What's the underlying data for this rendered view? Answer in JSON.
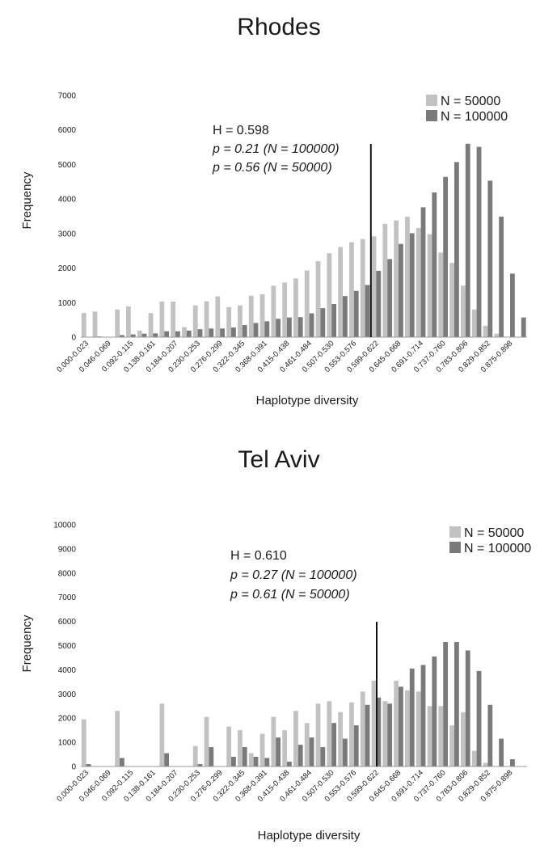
{
  "chart_data": [
    {
      "type": "bar",
      "title": "Rhodes",
      "xlabel": "Haplotype diversity",
      "ylabel": "Frequency",
      "ylim": [
        0,
        7000
      ],
      "yticks": [
        0,
        1000,
        2000,
        3000,
        4000,
        5000,
        6000,
        7000
      ],
      "legend": "top-right",
      "grid": false,
      "colors": {
        "N = 50000": "#c2c2c2",
        "N = 100000": "#7a7a7a"
      },
      "categories": [
        "0.000-0.023",
        "0.023-0.046",
        "0.046-0.069",
        "0.069-0.092",
        "0.092-0.115",
        "0.115-0.138",
        "0.138-0.161",
        "0.161-0.184",
        "0.184-0.207",
        "0.207-0.230",
        "0.230-0.253",
        "0.253-0.276",
        "0.276-0.299",
        "0.299-0.322",
        "0.322-0.345",
        "0.345-0.368",
        "0.368-0.391",
        "0.391-0.415",
        "0.415-0.438",
        "0.438-0.461",
        "0.461-0.484",
        "0.484-0.507",
        "0.507-0.530",
        "0.530-0.553",
        "0.553-0.576",
        "0.576-0.599",
        "0.599-0.622",
        "0.622-0.645",
        "0.645-0.668",
        "0.668-0.691",
        "0.691-0.714",
        "0.714-0.737",
        "0.737-0.760",
        "0.760-0.783",
        "0.783-0.806",
        "0.806-0.829",
        "0.829-0.852",
        "0.852-0.875",
        "0.875-0.898",
        "0.898-0.921"
      ],
      "tick_labels": [
        "0.000-0.023",
        "0.046-0.069",
        "0.092-0.115",
        "0.138-0.161",
        "0.184-0.207",
        "0.230-0.253",
        "0.276-0.299",
        "0.322-0.345",
        "0.368-0.391",
        "0.415-0.438",
        "0.461-0.484",
        "0.507-0.530",
        "0.553-0.576",
        "0.599-0.622",
        "0.645-0.668",
        "0.691-0.714",
        "0.737-0.760",
        "0.783-0.806",
        "0.829-0.852",
        "0.875-0.898"
      ],
      "series": [
        {
          "name": "N = 50000",
          "values": [
            700,
            740,
            0,
            800,
            890,
            190,
            700,
            1030,
            1030,
            290,
            920,
            1040,
            1180,
            870,
            920,
            1200,
            1240,
            1490,
            1580,
            1700,
            1930,
            2200,
            2430,
            2610,
            2750,
            2840,
            2920,
            3280,
            3380,
            3490,
            3160,
            2980,
            2450,
            2150,
            1490,
            800,
            330,
            100,
            0,
            0
          ]
        },
        {
          "name": "N = 100000",
          "values": [
            0,
            20,
            0,
            60,
            80,
            100,
            110,
            170,
            170,
            190,
            230,
            250,
            250,
            280,
            350,
            410,
            460,
            530,
            570,
            580,
            690,
            840,
            960,
            1190,
            1340,
            1510,
            1920,
            2260,
            2700,
            3010,
            3760,
            4190,
            4640,
            5070,
            5600,
            5510,
            4530,
            3490,
            1840,
            570
          ]
        }
      ],
      "annotations": [
        {
          "x": 0.598,
          "text_lines": [
            "H = 0.598",
            "p = 0.21 (N = 100000)",
            "p = 0.56 (N = 50000)"
          ]
        }
      ]
    },
    {
      "type": "bar",
      "title": "Tel Aviv",
      "xlabel": "Haplotype diversity",
      "ylabel": "Frequency",
      "ylim": [
        0,
        10000
      ],
      "yticks": [
        0,
        1000,
        2000,
        3000,
        4000,
        5000,
        6000,
        7000,
        8000,
        9000,
        10000
      ],
      "legend": "top-right",
      "grid": false,
      "colors": {
        "N = 50000": "#c2c2c2",
        "N = 100000": "#7a7a7a"
      },
      "categories": [
        "0.000-0.023",
        "0.023-0.046",
        "0.046-0.069",
        "0.069-0.092",
        "0.092-0.115",
        "0.115-0.138",
        "0.138-0.161",
        "0.161-0.184",
        "0.184-0.207",
        "0.207-0.230",
        "0.230-0.253",
        "0.253-0.276",
        "0.276-0.299",
        "0.299-0.322",
        "0.322-0.345",
        "0.345-0.368",
        "0.368-0.391",
        "0.391-0.415",
        "0.415-0.438",
        "0.438-0.461",
        "0.461-0.484",
        "0.484-0.507",
        "0.507-0.530",
        "0.530-0.553",
        "0.553-0.576",
        "0.576-0.599",
        "0.599-0.622",
        "0.622-0.645",
        "0.645-0.668",
        "0.668-0.691",
        "0.691-0.714",
        "0.714-0.737",
        "0.737-0.760",
        "0.760-0.783",
        "0.783-0.806",
        "0.806-0.829",
        "0.829-0.852",
        "0.852-0.875",
        "0.875-0.898",
        "0.898-0.921"
      ],
      "tick_labels": [
        "0.000-0.023",
        "0.046-0.069",
        "0.092-0.115",
        "0.138-0.161",
        "0.184-0.207",
        "0.230-0.253",
        "0.276-0.299",
        "0.322-0.345",
        "0.368-0.391",
        "0.415-0.438",
        "0.461-0.484",
        "0.507-0.530",
        "0.553-0.576",
        "0.599-0.622",
        "0.645-0.668",
        "0.691-0.714",
        "0.737-0.760",
        "0.783-0.806",
        "0.829-0.852",
        "0.875-0.898"
      ],
      "series": [
        {
          "name": "N = 50000",
          "values": [
            1950,
            0,
            0,
            2300,
            0,
            0,
            0,
            2600,
            0,
            0,
            850,
            2050,
            0,
            1650,
            1500,
            550,
            1350,
            2050,
            1500,
            2300,
            1800,
            2600,
            2700,
            2250,
            2650,
            3100,
            3550,
            2700,
            3550,
            3150,
            3100,
            2500,
            2500,
            1700,
            2250,
            650,
            150,
            0,
            0,
            0
          ]
        },
        {
          "name": "N = 100000",
          "values": [
            100,
            0,
            0,
            350,
            0,
            0,
            0,
            550,
            0,
            0,
            100,
            800,
            0,
            400,
            800,
            400,
            350,
            1200,
            200,
            900,
            1200,
            800,
            1800,
            1150,
            1700,
            2550,
            2850,
            2600,
            3300,
            4050,
            4200,
            4550,
            5150,
            5150,
            4800,
            3950,
            2550,
            1150,
            300,
            0
          ]
        }
      ],
      "annotations": [
        {
          "x": 0.61,
          "text_lines": [
            "H = 0.610",
            "p = 0.27 (N = 100000)",
            "p = 0.61 (N = 50000)"
          ]
        }
      ]
    }
  ]
}
